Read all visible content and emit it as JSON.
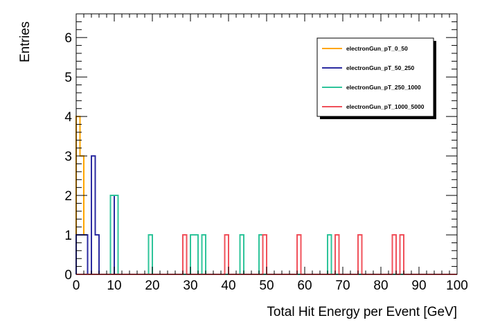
{
  "chart_data": {
    "type": "histogram-step",
    "xlabel": "Total Hit Energy per Event [GeV]",
    "ylabel": "Entries",
    "xlim": [
      0,
      100
    ],
    "ylim": [
      0,
      6.6
    ],
    "x_ticks": [
      0,
      10,
      20,
      30,
      40,
      50,
      60,
      70,
      80,
      90,
      100
    ],
    "y_ticks": [
      0,
      1,
      2,
      3,
      4,
      5,
      6
    ],
    "grid": false,
    "legend_position": "top-right",
    "series": [
      {
        "name": "electronGun_pT_0_50",
        "color": "#ffa500",
        "bins": [
          [
            0,
            1,
            4
          ],
          [
            1,
            2,
            3
          ],
          [
            2,
            3,
            1
          ]
        ]
      },
      {
        "name": "electronGun_pT_50_250",
        "color": "#2a2aa0",
        "bins": [
          [
            0,
            1,
            1
          ],
          [
            1,
            2,
            1
          ],
          [
            2,
            3,
            1
          ],
          [
            4,
            5,
            3
          ],
          [
            5,
            6,
            1
          ],
          [
            10,
            11,
            2
          ]
        ]
      },
      {
        "name": "electronGun_pT_250_1000",
        "color": "#2ec49a",
        "bins": [
          [
            9,
            10,
            2
          ],
          [
            10,
            11,
            2
          ],
          [
            19,
            20,
            1
          ],
          [
            30,
            31,
            1
          ],
          [
            31,
            32,
            1
          ],
          [
            33,
            34,
            1
          ],
          [
            43,
            44,
            1
          ],
          [
            48,
            49,
            1
          ],
          [
            66,
            67,
            1
          ]
        ]
      },
      {
        "name": "electronGun_pT_1000_5000",
        "color": "#f0505a",
        "bins": [
          [
            28,
            29,
            1
          ],
          [
            39,
            40,
            1
          ],
          [
            49,
            50,
            1
          ],
          [
            58,
            59,
            1
          ],
          [
            68,
            69,
            1
          ],
          [
            74,
            75,
            1
          ],
          [
            83,
            84,
            1
          ],
          [
            85,
            86,
            1
          ]
        ]
      }
    ]
  }
}
